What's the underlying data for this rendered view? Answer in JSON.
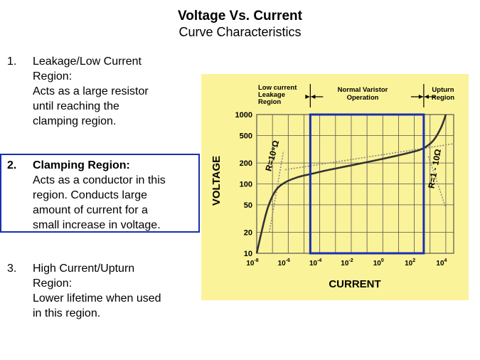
{
  "header": {
    "title": "Voltage Vs. Current",
    "subtitle": "Curve Characteristics"
  },
  "list": [
    {
      "number": "1.",
      "heading": "Leakage/Low  Current",
      "lines": [
        "Region:",
        "Acts as a large resistor",
        "until reaching the",
        "clamping region."
      ]
    },
    {
      "number": "2.",
      "heading": "Clamping Region:",
      "lines": [
        "Acts as a conductor in this",
        "region. Conducts large",
        "amount of current for a",
        "small increase in voltage."
      ]
    },
    {
      "number": "3.",
      "heading": "High Current/Upturn",
      "lines": [
        "Region:",
        "Lower lifetime when used",
        "in this region."
      ]
    }
  ],
  "colors": {
    "chart_bg": "#fbf39a",
    "highlight": "#1a2fb0",
    "curve": "#333333",
    "grid": "#555555"
  },
  "chart_data": {
    "type": "line",
    "region_labels": {
      "left": [
        "Low current",
        "Leakage",
        "Region"
      ],
      "middle": [
        "Normal Varistor",
        "Operation"
      ],
      "right": [
        "Upturn",
        "Region"
      ]
    },
    "xlabel": "CURRENT",
    "ylabel": "VOLTAGE",
    "x_ticks": [
      {
        "base": "10",
        "exp": "-8",
        "value": -8
      },
      {
        "base": "10",
        "exp": "-6",
        "value": -6
      },
      {
        "base": "10",
        "exp": "-4",
        "value": -4
      },
      {
        "base": "10",
        "exp": "-2",
        "value": -2
      },
      {
        "base": "10",
        "exp": "0",
        "value": 0
      },
      {
        "base": "10",
        "exp": "2",
        "value": 2
      },
      {
        "base": "10",
        "exp": "4",
        "value": 4
      }
    ],
    "y_ticks": [
      "1000",
      "500",
      "200",
      "100",
      "50",
      "20",
      "10"
    ],
    "x_scale": "log",
    "y_scale": "log",
    "xlim_exp": [
      -8,
      4.5
    ],
    "ylim": [
      10,
      1000
    ],
    "annotations": {
      "left_slope": "R=10⁹Ω",
      "right_slope": "R=1 - 10Ω"
    },
    "highlight_region": {
      "x_exp": [
        -4.6,
        2.6
      ],
      "y": [
        10,
        1000
      ]
    },
    "curve": [
      {
        "x_exp": -8.0,
        "y": 10
      },
      {
        "x_exp": -7.7,
        "y": 20
      },
      {
        "x_exp": -7.3,
        "y": 45
      },
      {
        "x_exp": -6.8,
        "y": 80
      },
      {
        "x_exp": -6.2,
        "y": 105
      },
      {
        "x_exp": -5.4,
        "y": 125
      },
      {
        "x_exp": -4.5,
        "y": 140
      },
      {
        "x_exp": -3.5,
        "y": 158
      },
      {
        "x_exp": -2.0,
        "y": 185
      },
      {
        "x_exp": 0.0,
        "y": 230
      },
      {
        "x_exp": 1.5,
        "y": 275
      },
      {
        "x_exp": 2.5,
        "y": 320
      },
      {
        "x_exp": 3.2,
        "y": 420
      },
      {
        "x_exp": 3.7,
        "y": 650
      },
      {
        "x_exp": 4.0,
        "y": 1000
      }
    ],
    "left_asymptote": [
      {
        "x_exp": -7.2,
        "y": 20
      },
      {
        "x_exp": -6.3,
        "y": 300
      }
    ],
    "middle_asymptote": [
      {
        "x_exp": -6.2,
        "y": 160
      },
      {
        "x_exp": 4.5,
        "y": 380
      }
    ],
    "right_asymptote": [
      {
        "x_exp": 2.9,
        "y": 250
      },
      {
        "x_exp": 4.0,
        "y": 45
      }
    ]
  }
}
